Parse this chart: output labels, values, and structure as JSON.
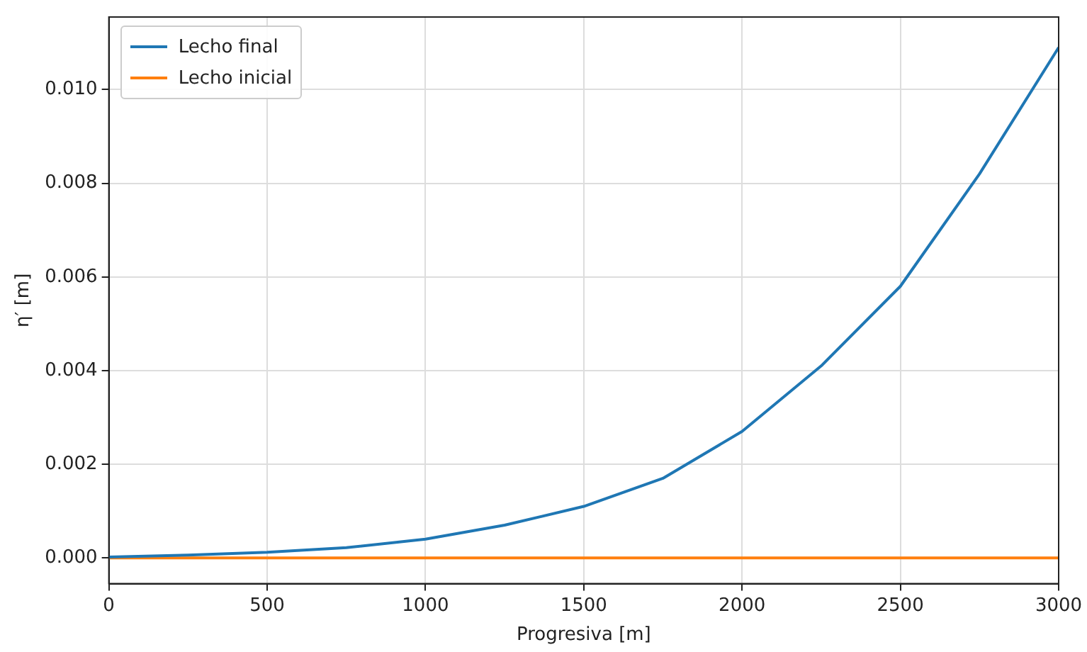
{
  "chart_data": {
    "type": "line",
    "xlabel": "Progresiva [m]",
    "ylabel": "η′ [m]",
    "x": [
      0,
      250,
      500,
      750,
      1000,
      1250,
      1500,
      1750,
      2000,
      2250,
      2500,
      2750,
      3000
    ],
    "series": [
      {
        "name": "Lecho final",
        "color": "#1f77b4",
        "values": [
          2e-05,
          6e-05,
          0.00012,
          0.00022,
          0.0004,
          0.0007,
          0.0011,
          0.0017,
          0.0027,
          0.0041,
          0.0058,
          0.0082,
          0.0109
        ]
      },
      {
        "name": "Lecho inicial",
        "color": "#ff7f0e",
        "values": [
          0,
          0,
          0,
          0,
          0,
          0,
          0,
          0,
          0,
          0,
          0,
          0,
          0
        ]
      }
    ],
    "xlim": [
      0,
      3000
    ],
    "xticks": [
      0,
      500,
      1000,
      1500,
      2000,
      2500,
      3000
    ],
    "ylim": [
      -0.00055,
      0.01155
    ],
    "yticks": [
      {
        "value": 0,
        "label": "0.000"
      },
      {
        "value": 0.002,
        "label": "0.002"
      },
      {
        "value": 0.004,
        "label": "0.004"
      },
      {
        "value": 0.006,
        "label": "0.006"
      },
      {
        "value": 0.008,
        "label": "0.008"
      },
      {
        "value": 0.01,
        "label": "0.010"
      }
    ],
    "grid": true,
    "legend": "top left",
    "marker": "none",
    "line_style": "solid"
  }
}
